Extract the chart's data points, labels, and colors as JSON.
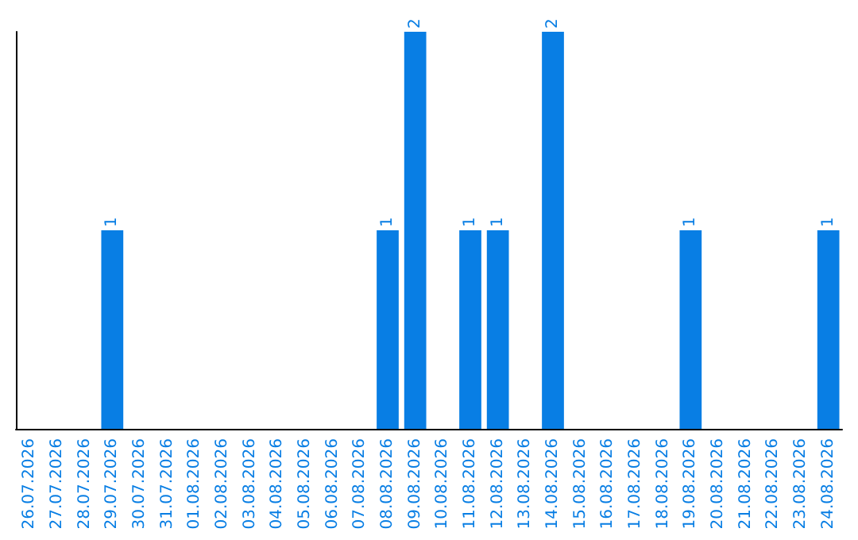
{
  "chart_data": {
    "type": "bar",
    "categories": [
      "26.07.2026",
      "27.07.2026",
      "28.07.2026",
      "29.07.2026",
      "30.07.2026",
      "31.07.2026",
      "01.08.2026",
      "02.08.2026",
      "03.08.2026",
      "04.08.2026",
      "05.08.2026",
      "06.08.2026",
      "07.08.2026",
      "08.08.2026",
      "09.08.2026",
      "10.08.2026",
      "11.08.2026",
      "12.08.2026",
      "13.08.2026",
      "14.08.2026",
      "15.08.2026",
      "16.08.2026",
      "17.08.2026",
      "18.08.2026",
      "19.08.2026",
      "20.08.2026",
      "21.08.2026",
      "22.08.2026",
      "23.08.2026",
      "24.08.2026"
    ],
    "values": [
      0,
      0,
      0,
      1,
      0,
      0,
      0,
      0,
      0,
      0,
      0,
      0,
      0,
      1,
      2,
      0,
      1,
      1,
      0,
      2,
      0,
      0,
      0,
      0,
      1,
      0,
      0,
      0,
      0,
      1
    ],
    "value_labels": [
      null,
      null,
      null,
      "1",
      null,
      null,
      null,
      null,
      null,
      null,
      null,
      null,
      null,
      "1",
      "2",
      null,
      "1",
      "1",
      null,
      "2",
      null,
      null,
      null,
      null,
      "1",
      null,
      null,
      null,
      null,
      "1"
    ],
    "color": "#087ee4",
    "tick_labels": "x"
  }
}
